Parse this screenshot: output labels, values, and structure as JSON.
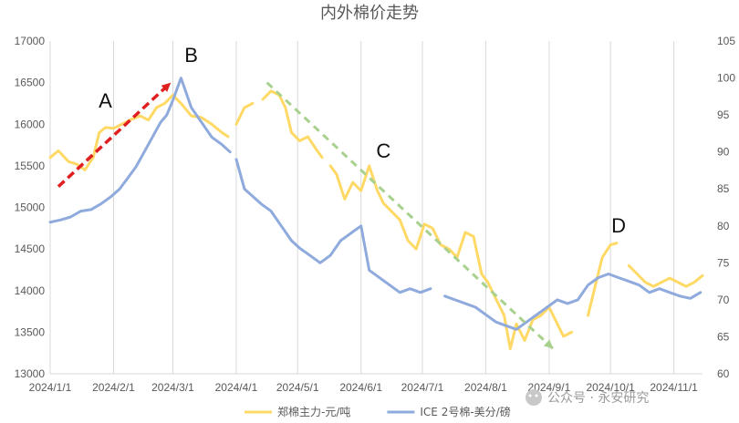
{
  "watermark": "公众号 · 永安研究",
  "chart_data": {
    "type": "line",
    "title": "内外棉价走势",
    "x_tick_labels": [
      "2024/1/1",
      "2024/2/1",
      "2024/3/1",
      "2024/4/1",
      "2024/5/1",
      "2024/6/1",
      "2024/7/1",
      "2024/8/1",
      "2024/9/1",
      "2024/10/1",
      "2024/11/1"
    ],
    "left_axis": {
      "range": [
        13000,
        17000
      ],
      "ticks": [
        13000,
        13500,
        14000,
        14500,
        15000,
        15500,
        16000,
        16500,
        17000
      ]
    },
    "right_axis": {
      "range": [
        60,
        105
      ],
      "ticks": [
        60,
        65,
        70,
        75,
        80,
        85,
        90,
        95,
        100,
        105
      ]
    },
    "grid": "vertical",
    "legend_position": "bottom",
    "series": [
      {
        "name": "郑棉主力-元/吨",
        "axis": "left",
        "color": "#FFD966",
        "points": [
          [
            "2024-01-01",
            15600
          ],
          [
            "2024-01-05",
            15680
          ],
          [
            "2024-01-10",
            15550
          ],
          [
            "2024-01-14",
            15520
          ],
          [
            "2024-01-18",
            15450
          ],
          [
            "2024-01-22",
            15600
          ],
          [
            "2024-01-25",
            15900
          ],
          [
            "2024-01-28",
            15960
          ],
          [
            "2024-02-01",
            15950
          ],
          [
            "2024-02-05",
            16000
          ],
          [
            "2024-02-09",
            16050
          ],
          [
            "2024-02-14",
            16100
          ],
          [
            "2024-02-18",
            16050
          ],
          [
            "2024-02-22",
            16200
          ],
          [
            "2024-02-26",
            16250
          ],
          [
            "2024-03-01",
            16350
          ],
          [
            "2024-03-05",
            16250
          ],
          [
            "2024-03-10",
            16100
          ],
          [
            "2024-03-15",
            16080
          ],
          [
            "2024-03-20",
            16000
          ],
          [
            "2024-03-25",
            15900
          ],
          [
            "2024-03-28",
            15850
          ],
          null,
          [
            "2024-04-01",
            16000
          ],
          [
            "2024-04-05",
            16200
          ],
          [
            "2024-04-09",
            16250
          ],
          null,
          [
            "2024-04-14",
            16300
          ],
          [
            "2024-04-18",
            16400
          ],
          [
            "2024-04-22",
            16350
          ],
          [
            "2024-04-25",
            16200
          ],
          [
            "2024-04-28",
            15900
          ],
          [
            "2024-05-02",
            15800
          ],
          [
            "2024-05-06",
            15850
          ],
          [
            "2024-05-10",
            15700
          ],
          [
            "2024-05-13",
            15600
          ],
          null,
          [
            "2024-05-17",
            15500
          ],
          [
            "2024-05-20",
            15400
          ],
          [
            "2024-05-24",
            15100
          ],
          [
            "2024-05-28",
            15300
          ],
          [
            "2024-06-01",
            15200
          ],
          [
            "2024-06-05",
            15500
          ],
          [
            "2024-06-09",
            15200
          ],
          [
            "2024-06-12",
            15050
          ],
          [
            "2024-06-16",
            14950
          ],
          [
            "2024-06-20",
            14850
          ],
          [
            "2024-06-24",
            14600
          ],
          [
            "2024-06-28",
            14500
          ],
          [
            "2024-07-02",
            14800
          ],
          [
            "2024-07-06",
            14750
          ],
          [
            "2024-07-10",
            14550
          ],
          [
            "2024-07-14",
            14500
          ],
          [
            "2024-07-18",
            14400
          ],
          [
            "2024-07-22",
            14700
          ],
          [
            "2024-07-26",
            14650
          ],
          [
            "2024-07-30",
            14200
          ],
          [
            "2024-08-02",
            14100
          ],
          [
            "2024-08-06",
            13900
          ],
          [
            "2024-08-10",
            13700
          ],
          [
            "2024-08-13",
            13300
          ],
          [
            "2024-08-16",
            13600
          ],
          [
            "2024-08-20",
            13400
          ],
          [
            "2024-08-24",
            13650
          ],
          [
            "2024-08-28",
            13700
          ],
          [
            "2024-09-01",
            13800
          ],
          [
            "2024-09-05",
            13600
          ],
          [
            "2024-09-08",
            13450
          ],
          [
            "2024-09-12",
            13500
          ],
          null,
          [
            "2024-09-20",
            13700
          ],
          [
            "2024-09-24",
            14100
          ],
          [
            "2024-09-27",
            14400
          ],
          [
            "2024-10-01",
            14550
          ],
          [
            "2024-10-04",
            14570
          ],
          null,
          [
            "2024-10-10",
            14300
          ],
          [
            "2024-10-14",
            14200
          ],
          [
            "2024-10-18",
            14100
          ],
          [
            "2024-10-22",
            14050
          ],
          [
            "2024-10-26",
            14100
          ],
          [
            "2024-10-30",
            14150
          ],
          [
            "2024-11-03",
            14100
          ],
          [
            "2024-11-07",
            14050
          ],
          [
            "2024-11-11",
            14100
          ],
          [
            "2024-11-15",
            14180
          ]
        ]
      },
      {
        "name": "ICE 2号棉-美分/磅",
        "axis": "right",
        "color": "#8FAADC",
        "points": [
          [
            "2024-01-01",
            80.5
          ],
          [
            "2024-01-06",
            80.8
          ],
          [
            "2024-01-11",
            81.2
          ],
          [
            "2024-01-16",
            82
          ],
          [
            "2024-01-21",
            82.2
          ],
          [
            "2024-01-26",
            83
          ],
          [
            "2024-01-31",
            84
          ],
          [
            "2024-02-04",
            85
          ],
          [
            "2024-02-08",
            86.5
          ],
          [
            "2024-02-12",
            88
          ],
          [
            "2024-02-16",
            90
          ],
          [
            "2024-02-20",
            92
          ],
          [
            "2024-02-24",
            94
          ],
          [
            "2024-02-27",
            95
          ],
          [
            "2024-03-01",
            97
          ],
          [
            "2024-03-05",
            100
          ],
          [
            "2024-03-10",
            96
          ],
          [
            "2024-03-15",
            94
          ],
          [
            "2024-03-20",
            92
          ],
          [
            "2024-03-25",
            91
          ],
          [
            "2024-03-29",
            90
          ],
          null,
          [
            "2024-04-01",
            89
          ],
          [
            "2024-04-05",
            85
          ],
          [
            "2024-04-09",
            84
          ],
          [
            "2024-04-13",
            83
          ],
          [
            "2024-04-18",
            82
          ],
          [
            "2024-04-23",
            80
          ],
          [
            "2024-04-28",
            78
          ],
          [
            "2024-05-02",
            77
          ],
          [
            "2024-05-07",
            76
          ],
          [
            "2024-05-12",
            75
          ],
          [
            "2024-05-17",
            76
          ],
          [
            "2024-05-22",
            78
          ],
          [
            "2024-05-27",
            79
          ],
          [
            "2024-06-01",
            80
          ],
          [
            "2024-06-05",
            74
          ],
          [
            "2024-06-10",
            73
          ],
          [
            "2024-06-15",
            72
          ],
          [
            "2024-06-20",
            71
          ],
          [
            "2024-06-25",
            71.5
          ],
          [
            "2024-06-30",
            71
          ],
          [
            "2024-07-05",
            71.5
          ],
          null,
          [
            "2024-07-12",
            70.5
          ],
          [
            "2024-07-17",
            70
          ],
          [
            "2024-07-22",
            69.5
          ],
          [
            "2024-07-27",
            69
          ],
          [
            "2024-08-01",
            68
          ],
          [
            "2024-08-06",
            67
          ],
          [
            "2024-08-11",
            66.5
          ],
          [
            "2024-08-16",
            66
          ],
          [
            "2024-08-21",
            67
          ],
          [
            "2024-08-26",
            68
          ],
          [
            "2024-08-31",
            69
          ],
          [
            "2024-09-05",
            70
          ],
          [
            "2024-09-10",
            69.5
          ],
          [
            "2024-09-15",
            70
          ],
          [
            "2024-09-20",
            72
          ],
          [
            "2024-09-25",
            73
          ],
          [
            "2024-09-30",
            73.5
          ],
          [
            "2024-10-05",
            73
          ],
          [
            "2024-10-10",
            72.5
          ],
          [
            "2024-10-15",
            72
          ],
          [
            "2024-10-20",
            71
          ],
          [
            "2024-10-25",
            71.5
          ],
          [
            "2024-10-30",
            71
          ],
          [
            "2024-11-04",
            70.5
          ],
          [
            "2024-11-09",
            70.2
          ],
          [
            "2024-11-14",
            71
          ]
        ]
      }
    ],
    "annotations": [
      {
        "label": "A",
        "date": "2024-01-28",
        "value": 16200
      },
      {
        "label": "B",
        "date": "2024-03-10",
        "value": 16750
      },
      {
        "label": "C",
        "date": "2024-06-12",
        "value": 15600
      },
      {
        "label": "D",
        "date": "2024-10-05",
        "value": 14700
      }
    ],
    "trend_arrows": [
      {
        "color": "#e02020",
        "style": "dashed",
        "from": [
          "2024-01-05",
          15250
        ],
        "to": [
          "2024-02-29",
          16500
        ]
      },
      {
        "color": "#a9d18e",
        "style": "dashed",
        "from": [
          "2024-04-16",
          16500
        ],
        "to": [
          "2024-09-03",
          13300
        ]
      }
    ]
  }
}
